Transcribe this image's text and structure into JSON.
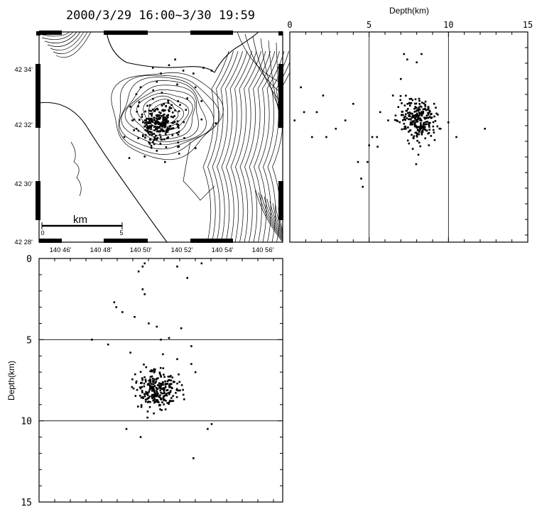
{
  "title": "2000/3/29 16:00~3/30 19:59",
  "chart_data": [
    {
      "type": "scatter",
      "panel": "epicenter-map",
      "title": "2000/3/29 16:00~3/30 19:59",
      "xlabel": "",
      "ylabel": "",
      "x_ticks": [
        "140 46'",
        "140 48'",
        "140 50'",
        "140 52'",
        "140 54'",
        "140 56'"
      ],
      "y_ticks": [
        "42 34'",
        "42 32'",
        "42 30'",
        "42 28'"
      ],
      "xlim": [
        140.7433,
        140.9433
      ],
      "ylim": [
        42.4667,
        42.5933
      ],
      "scale_bar": {
        "label": "km",
        "start": "0",
        "end": "5",
        "length_km": 5
      },
      "points": [
        [
          140.8367,
          42.5717
        ],
        [
          140.8433,
          42.5683
        ],
        [
          140.85,
          42.5733
        ],
        [
          140.855,
          42.5767
        ],
        [
          140.8617,
          42.57
        ],
        [
          140.87,
          42.5683
        ],
        [
          140.8783,
          42.5717
        ],
        [
          140.885,
          42.57
        ],
        [
          140.8267,
          42.56
        ],
        [
          140.84,
          42.5633
        ],
        [
          140.8567,
          42.5617
        ],
        [
          140.8717,
          42.56
        ],
        [
          140.8183,
          42.5483
        ],
        [
          140.82,
          42.54
        ],
        [
          140.865,
          42.5533
        ],
        [
          140.8767,
          42.5517
        ],
        [
          140.8233,
          42.535
        ],
        [
          140.8883,
          42.5383
        ],
        [
          140.8133,
          42.53
        ],
        [
          140.83,
          42.5183
        ],
        [
          140.84,
          42.5217
        ],
        [
          140.8467,
          42.515
        ],
        [
          140.8583,
          42.52
        ],
        [
          140.8717,
          42.5233
        ]
      ],
      "cluster": {
        "center": [
          140.8417,
          42.5383
        ],
        "spread_deg": [
          0.018,
          0.012
        ],
        "count": 260
      }
    },
    {
      "type": "scatter",
      "panel": "depth-vs-longitude",
      "title": "",
      "xlabel": "Depth(km)",
      "ylabel": "",
      "xlim": [
        0,
        15
      ],
      "x_ticks": [
        0,
        5,
        10,
        15
      ],
      "gridlines": [
        5,
        10
      ],
      "points": [
        [
          0.3,
          42.54
        ],
        [
          0.7,
          42.56
        ],
        [
          0.9,
          42.545
        ],
        [
          1.4,
          42.53
        ],
        [
          1.7,
          42.545
        ],
        [
          2.1,
          42.555
        ],
        [
          2.3,
          42.53
        ],
        [
          2.9,
          42.535
        ],
        [
          3.5,
          42.54
        ],
        [
          4.0,
          42.55
        ],
        [
          4.3,
          42.515
        ],
        [
          4.5,
          42.505
        ],
        [
          4.6,
          42.5
        ],
        [
          4.9,
          42.515
        ],
        [
          5.0,
          42.525
        ],
        [
          5.2,
          42.53
        ],
        [
          5.5,
          42.53
        ],
        [
          5.7,
          42.545
        ],
        [
          6.2,
          42.54
        ],
        [
          6.5,
          42.555
        ],
        [
          7.0,
          42.565
        ],
        [
          7.2,
          42.58
        ],
        [
          7.4,
          42.5767
        ],
        [
          8.0,
          42.575
        ],
        [
          8.3,
          42.58
        ],
        [
          9.1,
          42.55
        ],
        [
          9.5,
          42.535
        ],
        [
          10.5,
          42.53
        ],
        [
          12.3,
          42.535
        ]
      ],
      "cluster": {
        "center": [
          8.1,
          42.54
        ],
        "spread": [
          0.6,
          0.013
        ],
        "count": 260
      }
    },
    {
      "type": "scatter",
      "panel": "latitude-vs-depth",
      "title": "",
      "xlabel": "",
      "ylabel": "Depth(km)",
      "ylim": [
        0,
        15
      ],
      "y_ticks": [
        0,
        5,
        10,
        15
      ],
      "gridlines": [
        5,
        10
      ],
      "points": [
        [
          140.825,
          0.8
        ],
        [
          140.83,
          0.3
        ],
        [
          140.8283,
          0.5
        ],
        [
          140.8567,
          0.5
        ],
        [
          140.8767,
          0.3
        ],
        [
          140.865,
          1.2
        ],
        [
          140.8283,
          1.9
        ],
        [
          140.83,
          2.2
        ],
        [
          140.805,
          2.7
        ],
        [
          140.8067,
          3.0
        ],
        [
          140.8117,
          3.3
        ],
        [
          140.8217,
          3.6
        ],
        [
          140.8333,
          4.0
        ],
        [
          140.84,
          4.2
        ],
        [
          140.86,
          4.3
        ],
        [
          140.7867,
          5.0
        ],
        [
          140.8,
          5.3
        ],
        [
          140.8433,
          5.0
        ],
        [
          140.85,
          4.9
        ],
        [
          140.8683,
          5.4
        ],
        [
          140.8183,
          5.8
        ],
        [
          140.845,
          5.9
        ],
        [
          140.815,
          10.5
        ],
        [
          140.8267,
          11.0
        ],
        [
          140.885,
          10.2
        ],
        [
          140.87,
          12.3
        ],
        [
          140.8817,
          10.5
        ],
        [
          140.8683,
          6.5
        ],
        [
          140.8717,
          7.0
        ],
        [
          140.8567,
          6.2
        ]
      ],
      "cluster": {
        "center": [
          140.84,
          8.1
        ],
        "spread": [
          0.015,
          0.6
        ],
        "count": 260
      }
    }
  ]
}
